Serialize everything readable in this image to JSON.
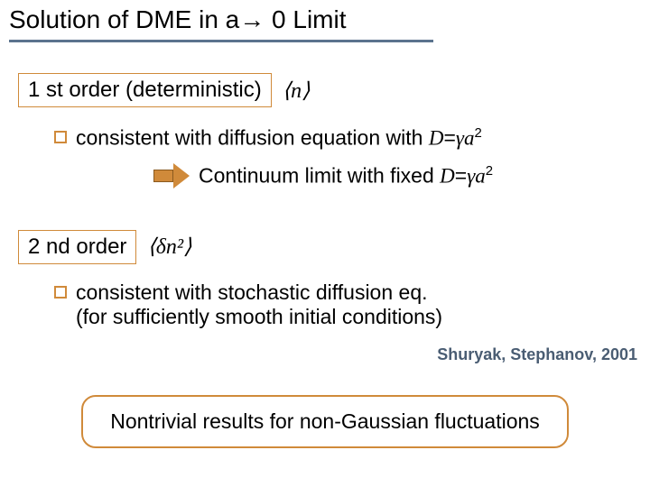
{
  "title": "Solution of DME in a→ 0 Limit",
  "section1": {
    "label": "1 st order (deterministic)",
    "expr": "⟨n⟩",
    "bullet_pre": "consistent with diffusion equation with ",
    "formula_D": "D",
    "formula_eq": "=",
    "formula_g": "γ",
    "formula_a": "a",
    "formula_exp": "2",
    "arrow_text_pre": "Continuum limit with fixed ",
    "arrow_D": "D",
    "arrow_eq": "=",
    "arrow_g": "γ",
    "arrow_a": "a",
    "arrow_exp": "2"
  },
  "section2": {
    "label": "2 nd order",
    "expr": "⟨δn²⟩",
    "bullet_line1": "consistent with stochastic diffusion eq.",
    "bullet_line2": "(for sufficiently smooth initial conditions)"
  },
  "citation": "Shuryak, Stephanov, 2001",
  "result": "Nontrivial results for non-Gaussian fluctuations",
  "colors": {
    "accent": "#d08a3a",
    "underline": "#5b738e",
    "citation": "#4a5d73"
  }
}
